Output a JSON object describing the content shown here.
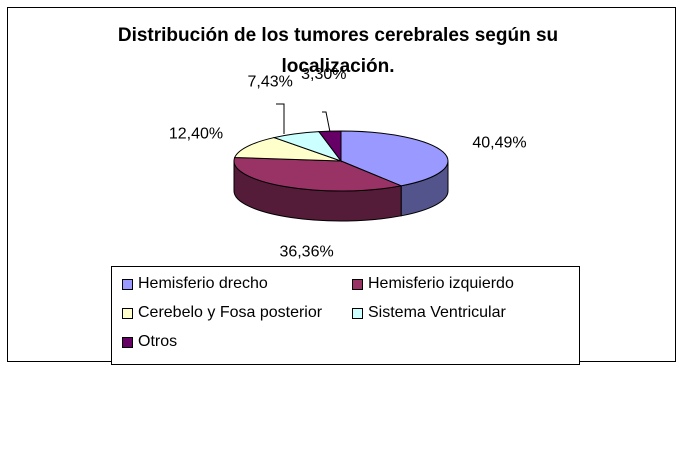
{
  "chart_data": {
    "type": "pie",
    "title": "Distribución de los tumores cerebrales según su localización.",
    "categories": [
      "Hemisferio drecho",
      "Hemisferio izquierdo",
      "Cerebelo y Fosa posterior",
      "Sistema Ventricular",
      "Otros"
    ],
    "values": [
      40.49,
      36.36,
      12.4,
      7.43,
      3.3
    ],
    "data_labels": [
      "40,49%",
      "36,36%",
      "12,40%",
      "7,43%",
      "3,30%"
    ],
    "colors": [
      "#9999ff",
      "#993366",
      "#ffffcc",
      "#ccffff",
      "#660066"
    ],
    "legend_position": "bottom",
    "style": "3d"
  }
}
